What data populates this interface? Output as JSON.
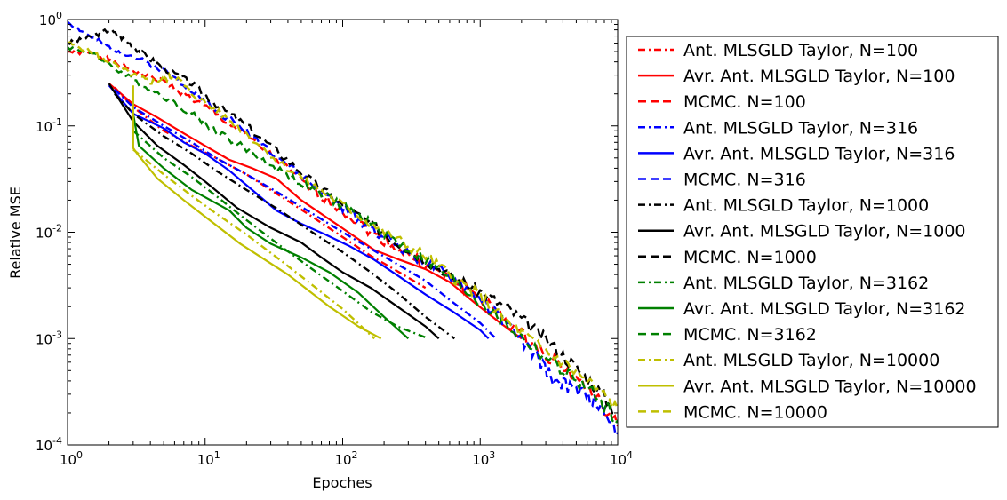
{
  "chart_data": {
    "type": "line",
    "title": "",
    "xlabel": "Epoches",
    "ylabel": "Relative MSE",
    "xscale": "log",
    "yscale": "log",
    "xlim": [
      1,
      10000
    ],
    "ylim": [
      0.0001,
      1
    ],
    "grid": false,
    "legend_location": "right, outside plot",
    "x_ticks": [
      {
        "value": 1,
        "base": "10",
        "exp": "0"
      },
      {
        "value": 10,
        "base": "10",
        "exp": "1"
      },
      {
        "value": 100,
        "base": "10",
        "exp": "2"
      },
      {
        "value": 1000,
        "base": "10",
        "exp": "3"
      },
      {
        "value": 10000,
        "base": "10",
        "exp": "4"
      }
    ],
    "y_ticks": [
      {
        "value": 1,
        "base": "10",
        "exp": "0"
      },
      {
        "value": 0.1,
        "base": "10",
        "exp": "-1"
      },
      {
        "value": 0.01,
        "base": "10",
        "exp": "-2"
      },
      {
        "value": 0.001,
        "base": "10",
        "exp": "-3"
      },
      {
        "value": 0.0001,
        "base": "10",
        "exp": "-4"
      }
    ],
    "series": [
      {
        "name": "Ant. MLSGLD Taylor, N=100",
        "color": "#ff0000",
        "style": "dashdot",
        "x": [
          2.2,
          3,
          5,
          8,
          12,
          20,
          35,
          60,
          100,
          160,
          250,
          400
        ],
        "y": [
          0.23,
          0.15,
          0.09,
          0.065,
          0.05,
          0.035,
          0.022,
          0.014,
          0.009,
          0.006,
          0.0043,
          0.003
        ]
      },
      {
        "name": "Avr. Ant. MLSGLD Taylor, N=100",
        "color": "#ff0000",
        "style": "solid",
        "x": [
          2,
          3,
          4.5,
          7,
          10,
          15,
          22,
          33,
          50,
          75,
          110,
          170,
          260,
          400,
          600,
          900,
          1400,
          2000
        ],
        "y": [
          0.25,
          0.16,
          0.12,
          0.085,
          0.065,
          0.048,
          0.04,
          0.032,
          0.02,
          0.014,
          0.01,
          0.0068,
          0.0055,
          0.0045,
          0.0034,
          0.0022,
          0.0014,
          0.001
        ]
      },
      {
        "name": "MCMC. N=100",
        "color": "#ff0000",
        "style": "dashed",
        "mcmc": true,
        "seed": 1,
        "x": [
          1,
          1.5,
          2,
          3,
          5,
          8,
          12,
          20,
          35,
          60,
          100,
          160,
          250,
          400,
          630,
          1000,
          1600,
          2500,
          4000,
          6300,
          10000
        ],
        "y": [
          0.5,
          0.48,
          0.42,
          0.33,
          0.26,
          0.18,
          0.13,
          0.08,
          0.045,
          0.025,
          0.016,
          0.01,
          0.007,
          0.005,
          0.0036,
          0.0024,
          0.0014,
          0.00085,
          0.00055,
          0.00032,
          0.00015
        ]
      },
      {
        "name": "Ant. MLSGLD Taylor, N=316",
        "color": "#0000ff",
        "style": "dashdot",
        "x": [
          2.2,
          3,
          5,
          8,
          12,
          20,
          35,
          60,
          100,
          160,
          250,
          400,
          630,
          1000,
          1300
        ],
        "y": [
          0.22,
          0.15,
          0.1,
          0.07,
          0.05,
          0.035,
          0.023,
          0.015,
          0.01,
          0.007,
          0.005,
          0.0035,
          0.0022,
          0.0014,
          0.001
        ]
      },
      {
        "name": "Avr. Ant. MLSGLD Taylor, N=316",
        "color": "#0000ff",
        "style": "solid",
        "x": [
          2,
          3,
          5,
          7,
          10,
          15,
          22,
          33,
          50,
          75,
          110,
          170,
          260,
          400,
          630,
          1000,
          1150
        ],
        "y": [
          0.24,
          0.13,
          0.095,
          0.07,
          0.055,
          0.038,
          0.025,
          0.016,
          0.012,
          0.0095,
          0.0075,
          0.0055,
          0.0038,
          0.0026,
          0.0018,
          0.0012,
          0.001
        ]
      },
      {
        "name": "MCMC. N=316",
        "color": "#0000ff",
        "style": "dashed",
        "mcmc": true,
        "seed": 2,
        "x": [
          1,
          1.5,
          2,
          3,
          5,
          8,
          12,
          20,
          35,
          60,
          100,
          160,
          250,
          400,
          630,
          1000,
          1600,
          2500,
          3500,
          5000,
          7000,
          10000
        ],
        "y": [
          0.95,
          0.68,
          0.55,
          0.45,
          0.33,
          0.22,
          0.14,
          0.09,
          0.05,
          0.028,
          0.017,
          0.011,
          0.0075,
          0.0052,
          0.0036,
          0.0024,
          0.0013,
          0.0007,
          0.0004,
          0.00033,
          0.00025,
          0.00013
        ]
      },
      {
        "name": "Ant. MLSGLD Taylor, N=1000",
        "color": "#000000",
        "style": "dashdot",
        "x": [
          2.2,
          3,
          5,
          8,
          12,
          20,
          35,
          60,
          100,
          160,
          250,
          400,
          650
        ],
        "y": [
          0.2,
          0.13,
          0.08,
          0.055,
          0.038,
          0.025,
          0.016,
          0.01,
          0.0065,
          0.0042,
          0.0027,
          0.0016,
          0.001
        ]
      },
      {
        "name": "Avr. Ant. MLSGLD Taylor, N=1000",
        "color": "#000000",
        "style": "solid",
        "x": [
          2,
          3,
          4.5,
          7,
          10,
          17,
          30,
          50,
          70,
          100,
          160,
          250,
          400,
          500
        ],
        "y": [
          0.25,
          0.11,
          0.065,
          0.043,
          0.03,
          0.017,
          0.011,
          0.008,
          0.0058,
          0.0042,
          0.003,
          0.002,
          0.0013,
          0.001
        ]
      },
      {
        "name": "MCMC. N=1000",
        "color": "#000000",
        "style": "dashed",
        "mcmc": true,
        "seed": 3,
        "x": [
          1,
          1.4,
          2,
          2.6,
          3.5,
          5,
          8,
          12,
          20,
          35,
          60,
          100,
          160,
          250,
          400,
          630,
          1000,
          1600,
          2500,
          4000,
          6300,
          10000
        ],
        "y": [
          0.6,
          0.67,
          0.8,
          0.65,
          0.48,
          0.35,
          0.25,
          0.16,
          0.1,
          0.055,
          0.03,
          0.018,
          0.012,
          0.008,
          0.0055,
          0.0038,
          0.0028,
          0.0019,
          0.0012,
          0.0007,
          0.0004,
          0.0002
        ]
      },
      {
        "name": "Ant. MLSGLD Taylor, N=3162",
        "color": "#008000",
        "style": "dashdot",
        "x": [
          3,
          5,
          8,
          12,
          20,
          35,
          60,
          100,
          160,
          250,
          420
        ],
        "y": [
          0.09,
          0.05,
          0.033,
          0.022,
          0.013,
          0.0075,
          0.0045,
          0.0028,
          0.0018,
          0.0013,
          0.001
        ]
      },
      {
        "name": "Avr. Ant. MLSGLD Taylor, N=3162",
        "color": "#008000",
        "style": "solid",
        "x": [
          3,
          3.3,
          5,
          8,
          15,
          20,
          30,
          50,
          80,
          130,
          200,
          300
        ],
        "y": [
          0.13,
          0.065,
          0.04,
          0.025,
          0.016,
          0.011,
          0.0078,
          0.0058,
          0.0042,
          0.0027,
          0.0016,
          0.001
        ]
      },
      {
        "name": "MCMC. N=3162",
        "color": "#008000",
        "style": "dashed",
        "mcmc": true,
        "seed": 4,
        "x": [
          1,
          1.5,
          2,
          3,
          5,
          8,
          12,
          20,
          35,
          60,
          100,
          160,
          250,
          400,
          630,
          1000,
          1600,
          2500,
          4000,
          6300,
          10000
        ],
        "y": [
          0.55,
          0.48,
          0.38,
          0.27,
          0.19,
          0.13,
          0.09,
          0.06,
          0.038,
          0.025,
          0.018,
          0.012,
          0.008,
          0.0055,
          0.0036,
          0.0022,
          0.0013,
          0.0008,
          0.0005,
          0.00032,
          0.00017
        ]
      },
      {
        "name": "Ant. MLSGLD Taylor, N=10000",
        "color": "#bfbf00",
        "style": "dashdot",
        "x": [
          3,
          5,
          8,
          12,
          20,
          35,
          60,
          100,
          170
        ],
        "y": [
          0.06,
          0.035,
          0.022,
          0.015,
          0.0095,
          0.0055,
          0.0032,
          0.0019,
          0.001
        ]
      },
      {
        "name": "Avr. Ant. MLSGLD Taylor, N=10000",
        "color": "#bfbf00",
        "style": "solid",
        "x": [
          3,
          3,
          3.2,
          4.5,
          7,
          10,
          18,
          40,
          80,
          130,
          190
        ],
        "y": [
          0.24,
          0.062,
          0.055,
          0.032,
          0.02,
          0.014,
          0.0078,
          0.004,
          0.002,
          0.0013,
          0.001
        ]
      },
      {
        "name": "MCMC. N=10000",
        "color": "#bfbf00",
        "style": "dashed",
        "mcmc": true,
        "seed": 5,
        "x": [
          1,
          1.5,
          2,
          3,
          4,
          5,
          6,
          8,
          12,
          20,
          35,
          60,
          100,
          160,
          250,
          400,
          630,
          1000,
          1600,
          2500,
          4000,
          6300,
          10000
        ],
        "y": [
          0.6,
          0.5,
          0.4,
          0.3,
          0.26,
          0.27,
          0.3,
          0.2,
          0.14,
          0.085,
          0.045,
          0.028,
          0.018,
          0.012,
          0.0085,
          0.006,
          0.0038,
          0.0025,
          0.0014,
          0.0009,
          0.0006,
          0.00038,
          0.00022
        ]
      }
    ]
  }
}
